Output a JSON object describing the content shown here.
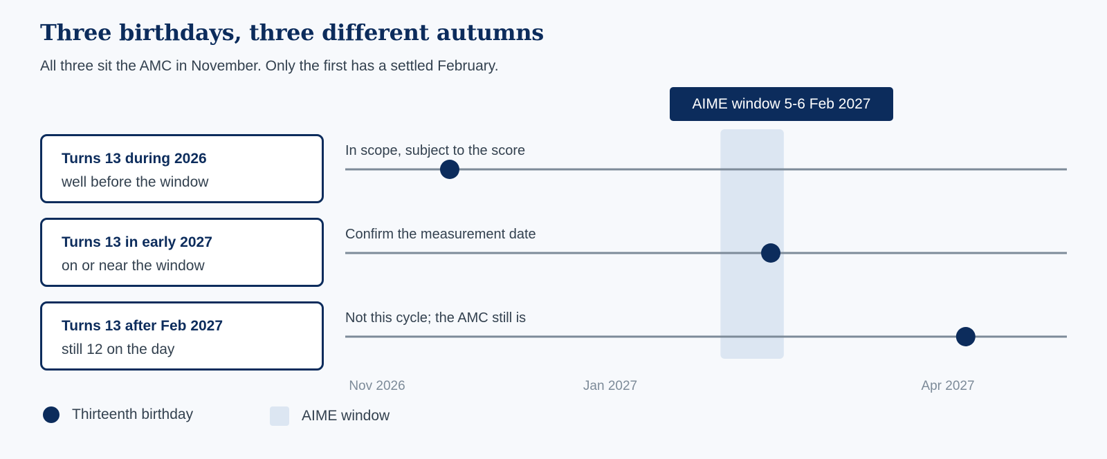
{
  "title": "Three birthdays, three different autumns",
  "subtitle": "All three sit the AMC in November. Only the first has a settled February.",
  "window_badge": "AIME window 5-6 Feb 2027",
  "cases": [
    {
      "heading": "Turns 13 during 2026",
      "detail": "well before the window"
    },
    {
      "heading": "Turns 13 in early 2027",
      "detail": "on or near the window"
    },
    {
      "heading": "Turns 13 after Feb 2027",
      "detail": "still 12 on the day"
    }
  ],
  "chart_data": {
    "type": "timeline",
    "x_axis": {
      "range": [
        "2026-11-01",
        "2027-05-31"
      ],
      "ticks": [
        "Nov 2026",
        "Jan 2027",
        "Apr 2027"
      ]
    },
    "window": {
      "label": "AIME window",
      "start": "2027-02-05",
      "end": "2027-02-06"
    },
    "rows": [
      {
        "label": "In scope, subject to the score",
        "birthday": "2026-11-20"
      },
      {
        "label": "Confirm the measurement date",
        "birthday": "2027-02-12"
      },
      {
        "label": "Not this cycle; the AMC still is",
        "birthday": "2027-04-04"
      }
    ],
    "legend": [
      {
        "name": "Thirteenth birthday",
        "color": "#0c2c5c"
      },
      {
        "name": "AIME window",
        "color": "#dce6f2"
      }
    ]
  },
  "colors": {
    "navy": "#0c2c5c",
    "window": "#dce6f2",
    "line": "#7d8b99"
  }
}
